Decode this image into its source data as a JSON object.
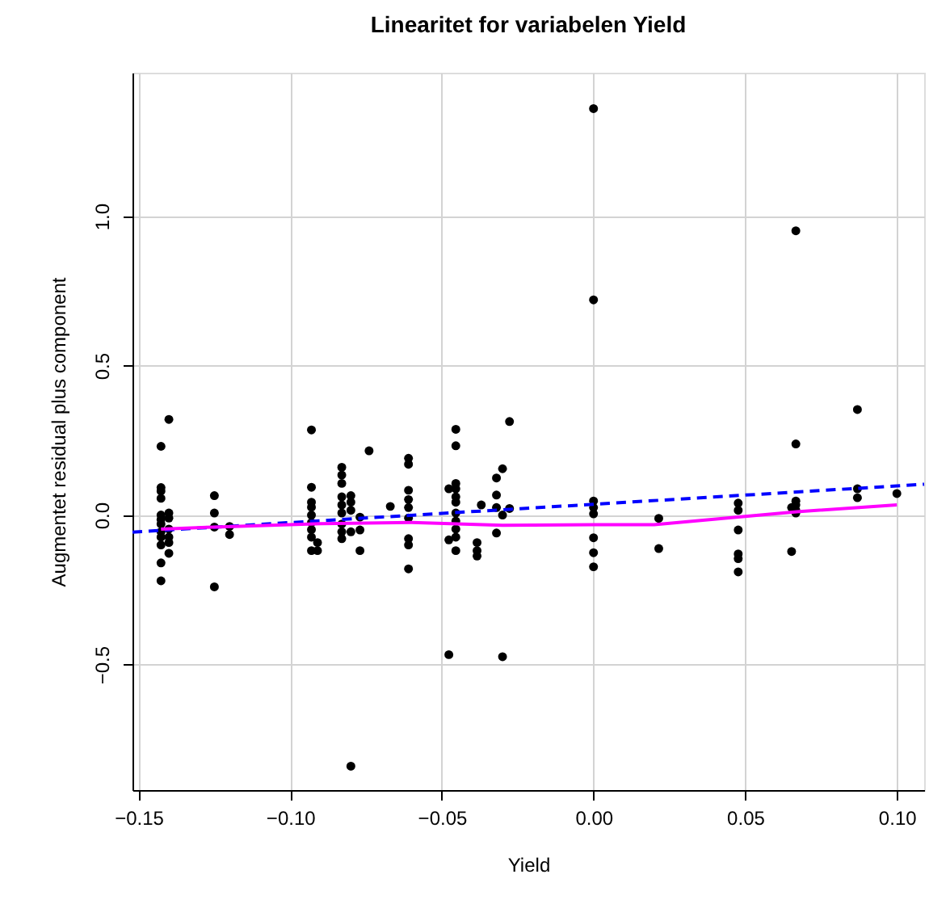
{
  "chart_data": {
    "type": "scatter",
    "title": "Linearitet for variabelen Yield",
    "xlabel": "Yield",
    "ylabel": "Augmentet residual plus component",
    "xlim": [
      -0.152,
      0.109
    ],
    "ylim": [
      -0.92,
      1.48
    ],
    "xticks": [
      {
        "value": -0.15,
        "label": "−0.15"
      },
      {
        "value": -0.1,
        "label": "−0.10"
      },
      {
        "value": -0.05,
        "label": "−0.05"
      },
      {
        "value": 0,
        "label": "0.00"
      },
      {
        "value": 0.05,
        "label": "0.05"
      },
      {
        "value": 0.1,
        "label": "0.10"
      }
    ],
    "yticks": [
      {
        "value": -0.5,
        "label": "−0.5"
      },
      {
        "value": 0,
        "label": "0.0"
      },
      {
        "value": 0.5,
        "label": "0.5"
      },
      {
        "value": 1,
        "label": "1.0"
      }
    ],
    "grid": true,
    "series": [
      {
        "color": "#000000",
        "marker": "circle",
        "x": [
          -0.1426,
          -0.1426,
          -0.1426,
          -0.1426,
          -0.1426,
          -0.1426,
          -0.1426,
          -0.1426,
          -0.1426,
          -0.1426,
          -0.1426,
          -0.1426,
          -0.14,
          -0.14,
          -0.14,
          -0.14,
          -0.14,
          -0.14,
          -0.14,
          -0.125,
          -0.125,
          -0.125,
          -0.125,
          -0.12,
          -0.12,
          -0.093,
          -0.093,
          -0.093,
          -0.093,
          -0.093,
          -0.093,
          -0.093,
          -0.093,
          -0.093,
          -0.091,
          -0.091,
          -0.083,
          -0.083,
          -0.083,
          -0.083,
          -0.083,
          -0.083,
          -0.083,
          -0.083,
          -0.083,
          -0.08,
          -0.08,
          -0.08,
          -0.08,
          -0.08,
          -0.077,
          -0.077,
          -0.077,
          -0.074,
          -0.067,
          -0.061,
          -0.061,
          -0.061,
          -0.061,
          -0.061,
          -0.061,
          -0.061,
          -0.061,
          -0.061,
          -0.0454,
          -0.0454,
          -0.0454,
          -0.0454,
          -0.0454,
          -0.0454,
          -0.0454,
          -0.0454,
          -0.0454,
          -0.0454,
          -0.0454,
          -0.0477,
          -0.0477,
          -0.0477,
          -0.0384,
          -0.0384,
          -0.0384,
          -0.037,
          -0.032,
          -0.032,
          -0.032,
          -0.032,
          -0.03,
          -0.03,
          -0.03,
          -0.0277,
          -0.0277,
          0,
          0,
          0,
          0,
          0,
          0,
          0,
          0,
          0.0215,
          0.0215,
          0.0477,
          0.0477,
          0.0477,
          0.0477,
          0.0477,
          0.0477,
          0.0653,
          0.0653,
          0.0667,
          0.0667,
          0.0667,
          0.0667,
          0.0667,
          0.0667,
          0.087,
          0.087,
          0.087,
          0.1
        ],
        "values": [
          0.23,
          0.092,
          0.08,
          0.056,
          0.0,
          -0.015,
          -0.03,
          -0.056,
          -0.074,
          -0.1,
          -0.16,
          -0.22,
          0.32,
          0.007,
          -0.01,
          -0.047,
          -0.074,
          -0.092,
          -0.128,
          0.065,
          0.007,
          -0.04,
          -0.24,
          -0.038,
          -0.065,
          0.285,
          0.093,
          0.043,
          0.026,
          0.0,
          -0.025,
          -0.049,
          -0.074,
          -0.119,
          -0.092,
          -0.119,
          0.16,
          0.134,
          0.106,
          0.061,
          0.034,
          0.007,
          -0.03,
          -0.056,
          -0.079,
          0.065,
          0.043,
          0.016,
          -0.056,
          -0.84,
          -0.007,
          -0.05,
          -0.119,
          0.215,
          0.029,
          0.19,
          0.17,
          0.083,
          0.052,
          0.025,
          -0.01,
          -0.079,
          -0.1,
          -0.18,
          0.287,
          0.232,
          0.106,
          0.088,
          0.061,
          0.043,
          0.007,
          -0.02,
          -0.047,
          -0.074,
          -0.119,
          0.088,
          -0.083,
          -0.467,
          -0.092,
          -0.119,
          -0.137,
          0.034,
          0.124,
          0.067,
          0.025,
          -0.06,
          0.155,
          0.0,
          -0.474,
          0.313,
          0.022,
          1.36,
          0.72,
          0.047,
          0.025,
          0.004,
          -0.076,
          -0.126,
          -0.173,
          -0.011,
          -0.112,
          0.04,
          0.016,
          -0.05,
          -0.13,
          -0.146,
          -0.19,
          0.025,
          -0.122,
          0.951,
          0.238,
          0.047,
          0.034,
          0.016,
          0.007,
          0.353,
          0.088,
          0.058,
          0.072
        ]
      },
      {
        "type": "line",
        "color": "#0000ff",
        "line_style": "dashed",
        "x": [
          -0.152,
          0.109
        ],
        "values": [
          -0.057,
          0.103
        ]
      },
      {
        "type": "line",
        "color": "#ff00ff",
        "line_style": "solid",
        "x": [
          -0.1426,
          -0.125,
          -0.09,
          -0.06,
          -0.03,
          0,
          0.02,
          0.047,
          0.067,
          0.1
        ],
        "values": [
          -0.047,
          -0.04,
          -0.029,
          -0.025,
          -0.034,
          -0.032,
          -0.032,
          -0.007,
          0.011,
          0.034
        ]
      }
    ]
  }
}
